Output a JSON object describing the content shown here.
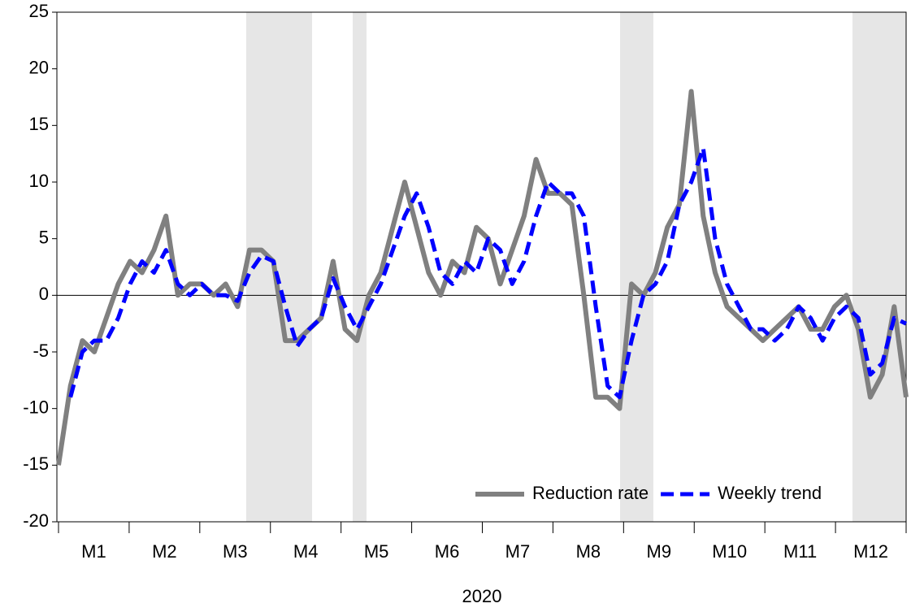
{
  "chart_data": {
    "type": "line",
    "categories": [
      "M1",
      null,
      null,
      null,
      null,
      null,
      "M2",
      null,
      null,
      null,
      null,
      null,
      "M3",
      null,
      null,
      null,
      null,
      null,
      "M4",
      null,
      null,
      null,
      null,
      null,
      "M5",
      null,
      null,
      null,
      null,
      null,
      "M6",
      null,
      null,
      null,
      null,
      null,
      "M7",
      null,
      null,
      null,
      null,
      null,
      "M8",
      null,
      null,
      null,
      null,
      null,
      "M9",
      null,
      null,
      null,
      null,
      null,
      "M10",
      null,
      null,
      null,
      null,
      null,
      "M11",
      null,
      null,
      null,
      null,
      null,
      "M12",
      null,
      null,
      null,
      null,
      null
    ],
    "xlabel": "2020",
    "series": [
      {
        "name": "Reduction rate",
        "color": "#808080",
        "style": "solid",
        "values": [
          -15,
          -8,
          -4,
          -5,
          -2,
          1,
          3,
          2,
          4,
          7,
          0,
          1,
          1,
          0,
          1,
          -1,
          4,
          4,
          3,
          -4,
          -4,
          -3,
          -2,
          3,
          -3,
          -4,
          0,
          2,
          6,
          10,
          6,
          2,
          0,
          3,
          2,
          6,
          5,
          1,
          4,
          7,
          12,
          9,
          9,
          8,
          0,
          -9,
          -9,
          -10,
          1,
          0,
          2,
          6,
          8,
          18,
          7,
          2,
          -1,
          -2,
          -3,
          -4,
          -3,
          -2,
          -1,
          -3,
          -3,
          -1,
          0,
          -3,
          -9,
          -7,
          -1,
          -9
        ]
      },
      {
        "name": "Weekly trend",
        "color": "#0000ff",
        "style": "dashed",
        "values": [
          null,
          -9,
          -5,
          -4,
          -4,
          -2,
          1,
          3,
          2,
          4,
          1,
          0,
          1,
          0,
          0,
          -0.5,
          2,
          3.5,
          3,
          -1,
          -4.5,
          -3,
          -2,
          1.5,
          -1,
          -3,
          -1,
          1,
          4,
          7,
          9,
          6,
          2,
          1,
          3,
          2,
          5,
          4,
          1,
          3,
          7,
          10,
          9,
          9,
          7,
          -1,
          -8,
          -9,
          -4,
          0,
          1,
          3,
          8,
          10,
          13,
          5,
          1,
          -1,
          -3,
          -3,
          -4,
          -3,
          -1,
          -2,
          -4,
          -2,
          -1,
          -2,
          -7,
          -6,
          -2,
          -2.5
        ]
      }
    ],
    "ylim": [
      -20,
      25
    ],
    "yticks": [
      -20,
      -15,
      -10,
      -5,
      0,
      5,
      10,
      15,
      20,
      25
    ],
    "legend": "lower right"
  }
}
